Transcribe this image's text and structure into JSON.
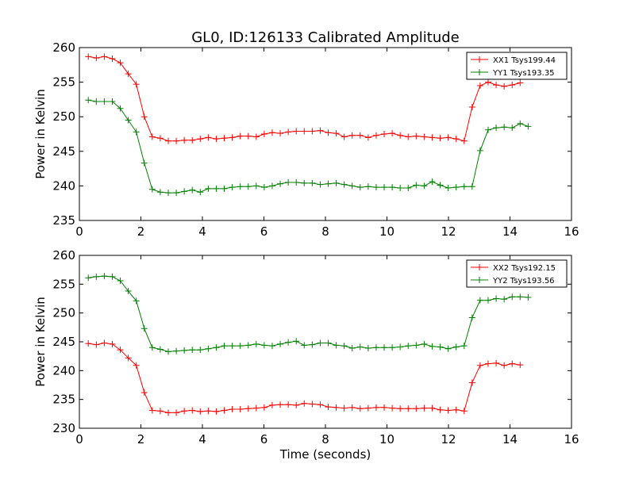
{
  "figure": {
    "title": "GL0, ID:126133 Calibrated Amplitude",
    "xlabel": "Time (seconds)"
  },
  "chart_data": [
    {
      "type": "line",
      "ylabel": "Power in Kelvin",
      "xlim": [
        0,
        16
      ],
      "ylim": [
        235,
        260
      ],
      "xticks": [
        0,
        2,
        4,
        6,
        8,
        10,
        12,
        14,
        16
      ],
      "yticks": [
        235,
        240,
        245,
        250,
        255,
        260
      ],
      "grid": false,
      "legend": "top-right",
      "x": [
        0.29,
        0.55,
        0.81,
        1.07,
        1.33,
        1.59,
        1.85,
        2.11,
        2.37,
        2.63,
        2.89,
        3.15,
        3.41,
        3.67,
        3.93,
        4.19,
        4.45,
        4.71,
        4.97,
        5.23,
        5.49,
        5.75,
        6.01,
        6.27,
        6.53,
        6.79,
        7.05,
        7.31,
        7.57,
        7.83,
        8.09,
        8.35,
        8.61,
        8.87,
        9.13,
        9.39,
        9.65,
        9.91,
        10.17,
        10.43,
        10.69,
        10.95,
        11.21,
        11.47,
        11.73,
        11.99,
        12.25,
        12.51,
        12.77,
        13.03,
        13.29,
        13.55,
        13.81,
        14.07,
        14.33,
        14.59
      ],
      "series": [
        {
          "name": "XX1 Tsys199.44",
          "color": "#ff0000",
          "values": [
            258.7,
            258.5,
            258.7,
            258.4,
            257.8,
            256.2,
            254.7,
            250.0,
            247.1,
            246.9,
            246.5,
            246.5,
            246.6,
            246.6,
            246.8,
            247.0,
            246.8,
            246.9,
            247.0,
            247.2,
            247.2,
            247.1,
            247.5,
            247.7,
            247.6,
            247.8,
            247.9,
            247.9,
            247.9,
            248.0,
            247.7,
            247.6,
            247.1,
            247.3,
            247.3,
            247.0,
            247.3,
            247.5,
            247.6,
            247.3,
            247.1,
            247.2,
            247.1,
            247.0,
            246.9,
            247.0,
            246.8,
            246.5,
            251.4,
            254.5,
            255.0,
            254.6,
            254.4,
            254.6,
            254.9,
            null
          ]
        },
        {
          "name": "YY1 Tsys193.35",
          "color": "#008000",
          "values": [
            252.4,
            252.2,
            252.2,
            252.2,
            251.2,
            249.5,
            247.8,
            243.3,
            239.5,
            239.1,
            239.0,
            239.0,
            239.2,
            239.4,
            239.1,
            239.6,
            239.6,
            239.6,
            239.8,
            239.9,
            239.9,
            240.0,
            239.8,
            240.0,
            240.3,
            240.5,
            240.5,
            240.4,
            240.4,
            240.2,
            240.3,
            240.4,
            240.2,
            240.0,
            239.8,
            239.9,
            239.8,
            239.8,
            239.8,
            239.7,
            239.7,
            240.1,
            240.0,
            240.6,
            240.1,
            239.7,
            239.8,
            239.9,
            239.9,
            245.1,
            248.1,
            248.4,
            248.5,
            248.4,
            249.0,
            248.6
          ]
        }
      ]
    },
    {
      "type": "line",
      "ylabel": "Power in Kelvin",
      "xlim": [
        0,
        16
      ],
      "ylim": [
        230,
        260
      ],
      "xticks": [
        0,
        2,
        4,
        6,
        8,
        10,
        12,
        14,
        16
      ],
      "yticks": [
        230,
        235,
        240,
        245,
        250,
        255,
        260
      ],
      "grid": false,
      "legend": "top-right",
      "x": [
        0.29,
        0.55,
        0.81,
        1.07,
        1.33,
        1.59,
        1.85,
        2.11,
        2.37,
        2.63,
        2.89,
        3.15,
        3.41,
        3.67,
        3.93,
        4.19,
        4.45,
        4.71,
        4.97,
        5.23,
        5.49,
        5.75,
        6.01,
        6.27,
        6.53,
        6.79,
        7.05,
        7.31,
        7.57,
        7.83,
        8.09,
        8.35,
        8.61,
        8.87,
        9.13,
        9.39,
        9.65,
        9.91,
        10.17,
        10.43,
        10.69,
        10.95,
        11.21,
        11.47,
        11.73,
        11.99,
        12.25,
        12.51,
        12.77,
        13.03,
        13.29,
        13.55,
        13.81,
        14.07,
        14.33,
        14.59
      ],
      "series": [
        {
          "name": "XX2 Tsys192.15",
          "color": "#ff0000",
          "values": [
            244.7,
            244.5,
            244.8,
            244.6,
            243.6,
            242.2,
            240.9,
            236.2,
            233.1,
            233.0,
            232.7,
            232.7,
            233.0,
            233.1,
            232.9,
            233.0,
            232.9,
            233.1,
            233.3,
            233.3,
            233.4,
            233.5,
            233.6,
            234.0,
            234.1,
            234.1,
            234.0,
            234.3,
            234.2,
            234.1,
            233.7,
            233.6,
            233.5,
            233.6,
            233.4,
            233.5,
            233.6,
            233.6,
            233.5,
            233.4,
            233.4,
            233.4,
            233.5,
            233.5,
            233.2,
            233.1,
            233.2,
            233.0,
            237.9,
            240.9,
            241.2,
            241.3,
            240.9,
            241.2,
            241.0,
            null
          ]
        },
        {
          "name": "YY2 Tsys193.56",
          "color": "#008000",
          "values": [
            256.1,
            256.3,
            256.4,
            256.3,
            255.6,
            253.8,
            252.1,
            247.3,
            244.0,
            243.7,
            243.3,
            243.4,
            243.5,
            243.6,
            243.6,
            243.8,
            244.0,
            244.3,
            244.3,
            244.3,
            244.4,
            244.6,
            244.4,
            244.3,
            244.6,
            244.9,
            245.1,
            244.4,
            244.5,
            244.8,
            244.8,
            244.4,
            244.3,
            243.9,
            244.1,
            243.9,
            244.0,
            244.0,
            244.0,
            244.1,
            244.3,
            244.4,
            244.6,
            244.2,
            244.1,
            243.8,
            244.1,
            244.3,
            249.2,
            252.2,
            252.2,
            252.5,
            252.4,
            252.8,
            252.8,
            252.7
          ]
        }
      ]
    }
  ]
}
